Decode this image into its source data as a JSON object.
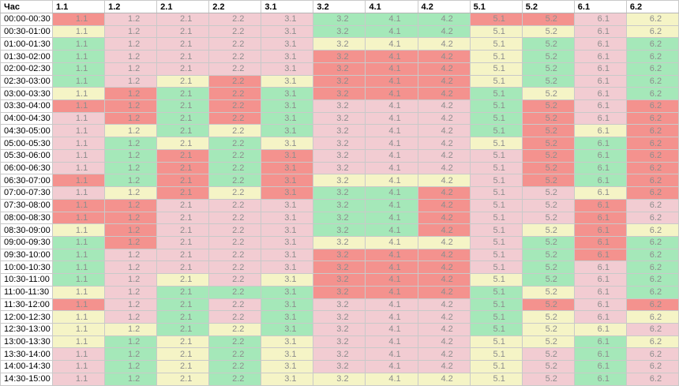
{
  "table": {
    "time_header": "Час"
  },
  "colors": {
    "red": "#f4928e",
    "pink": "#f2ccd2",
    "yellow": "#f5f4c6",
    "green": "#a5e8b9",
    "cell_text": "#8d8d8d",
    "header_text": "#000000",
    "border": "#c9c9c9",
    "row_background": "#ffffff"
  },
  "chart_data": {
    "type": "heatmap",
    "title": "",
    "xlabel": "",
    "ylabel": "Час",
    "legend": "none",
    "grid": true,
    "x_categories": [
      "1.1",
      "1.2",
      "2.1",
      "2.2",
      "3.1",
      "3.2",
      "4.1",
      "4.2",
      "5.1",
      "5.2",
      "6.1",
      "6.2"
    ],
    "y_categories": [
      "00:00-00:30",
      "00:30-01:00",
      "01:00-01:30",
      "01:30-02:00",
      "02:00-02:30",
      "02:30-03:00",
      "03:00-03:30",
      "03:30-04:00",
      "04:00-04:30",
      "04:30-05:00",
      "05:00-05:30",
      "05:30-06:00",
      "06:00-06:30",
      "06:30-07:00",
      "07:00-07:30",
      "07:30-08:00",
      "08:00-08:30",
      "08:30-09:00",
      "09:00-09:30",
      "09:30-10:00",
      "10:00-10:30",
      "10:30-11:00",
      "11:00-11:30",
      "11:30-12:00",
      "12:00-12:30",
      "12:30-13:00",
      "13:00-13:30",
      "13:30-14:00",
      "14:00-14:30",
      "14:30-15:00"
    ],
    "values": [
      [
        "red",
        "pink",
        "pink",
        "pink",
        "pink",
        "green",
        "green",
        "green",
        "red",
        "red",
        "pink",
        "yellow"
      ],
      [
        "yellow",
        "pink",
        "pink",
        "pink",
        "pink",
        "green",
        "green",
        "green",
        "yellow",
        "yellow",
        "pink",
        "yellow"
      ],
      [
        "green",
        "pink",
        "pink",
        "pink",
        "pink",
        "yellow",
        "yellow",
        "yellow",
        "yellow",
        "green",
        "pink",
        "green"
      ],
      [
        "green",
        "pink",
        "pink",
        "pink",
        "pink",
        "red",
        "red",
        "red",
        "yellow",
        "green",
        "pink",
        "green"
      ],
      [
        "green",
        "pink",
        "pink",
        "pink",
        "pink",
        "red",
        "red",
        "red",
        "yellow",
        "green",
        "pink",
        "green"
      ],
      [
        "green",
        "pink",
        "yellow",
        "red",
        "yellow",
        "red",
        "red",
        "red",
        "yellow",
        "green",
        "pink",
        "green"
      ],
      [
        "yellow",
        "red",
        "green",
        "red",
        "green",
        "red",
        "red",
        "red",
        "green",
        "yellow",
        "pink",
        "green"
      ],
      [
        "red",
        "red",
        "green",
        "red",
        "green",
        "pink",
        "pink",
        "pink",
        "green",
        "red",
        "pink",
        "red"
      ],
      [
        "pink",
        "red",
        "green",
        "red",
        "green",
        "pink",
        "pink",
        "pink",
        "green",
        "red",
        "pink",
        "red"
      ],
      [
        "pink",
        "yellow",
        "green",
        "yellow",
        "green",
        "pink",
        "pink",
        "pink",
        "green",
        "red",
        "yellow",
        "red"
      ],
      [
        "pink",
        "green",
        "yellow",
        "green",
        "yellow",
        "pink",
        "pink",
        "pink",
        "yellow",
        "red",
        "green",
        "red"
      ],
      [
        "pink",
        "green",
        "red",
        "green",
        "red",
        "pink",
        "pink",
        "pink",
        "pink",
        "red",
        "green",
        "red"
      ],
      [
        "pink",
        "green",
        "red",
        "green",
        "red",
        "pink",
        "pink",
        "pink",
        "pink",
        "red",
        "green",
        "red"
      ],
      [
        "red",
        "green",
        "red",
        "green",
        "red",
        "yellow",
        "yellow",
        "yellow",
        "pink",
        "red",
        "green",
        "red"
      ],
      [
        "pink",
        "yellow",
        "red",
        "yellow",
        "red",
        "green",
        "green",
        "red",
        "pink",
        "pink",
        "yellow",
        "red"
      ],
      [
        "red",
        "red",
        "pink",
        "pink",
        "pink",
        "green",
        "green",
        "red",
        "pink",
        "pink",
        "red",
        "pink"
      ],
      [
        "red",
        "red",
        "pink",
        "pink",
        "pink",
        "green",
        "green",
        "red",
        "pink",
        "pink",
        "red",
        "pink"
      ],
      [
        "yellow",
        "red",
        "pink",
        "pink",
        "pink",
        "green",
        "green",
        "red",
        "pink",
        "yellow",
        "red",
        "yellow"
      ],
      [
        "green",
        "red",
        "pink",
        "pink",
        "pink",
        "yellow",
        "yellow",
        "yellow",
        "pink",
        "green",
        "red",
        "green"
      ],
      [
        "green",
        "pink",
        "pink",
        "pink",
        "pink",
        "red",
        "red",
        "red",
        "pink",
        "green",
        "red",
        "green"
      ],
      [
        "green",
        "pink",
        "pink",
        "pink",
        "pink",
        "red",
        "red",
        "red",
        "pink",
        "green",
        "pink",
        "green"
      ],
      [
        "green",
        "pink",
        "yellow",
        "pink",
        "yellow",
        "red",
        "red",
        "red",
        "yellow",
        "green",
        "pink",
        "green"
      ],
      [
        "yellow",
        "pink",
        "green",
        "green",
        "green",
        "red",
        "red",
        "red",
        "green",
        "yellow",
        "pink",
        "green"
      ],
      [
        "red",
        "pink",
        "green",
        "pink",
        "green",
        "pink",
        "pink",
        "pink",
        "green",
        "red",
        "pink",
        "red"
      ],
      [
        "yellow",
        "pink",
        "green",
        "pink",
        "green",
        "pink",
        "pink",
        "pink",
        "green",
        "yellow",
        "pink",
        "yellow"
      ],
      [
        "yellow",
        "yellow",
        "green",
        "yellow",
        "green",
        "pink",
        "pink",
        "pink",
        "green",
        "yellow",
        "yellow",
        "pink"
      ],
      [
        "yellow",
        "green",
        "yellow",
        "green",
        "yellow",
        "pink",
        "pink",
        "pink",
        "yellow",
        "yellow",
        "green",
        "yellow"
      ],
      [
        "pink",
        "green",
        "yellow",
        "green",
        "yellow",
        "pink",
        "pink",
        "pink",
        "yellow",
        "pink",
        "green",
        "pink"
      ],
      [
        "pink",
        "green",
        "yellow",
        "green",
        "yellow",
        "pink",
        "pink",
        "pink",
        "yellow",
        "pink",
        "green",
        "pink"
      ],
      [
        "pink",
        "green",
        "yellow",
        "green",
        "yellow",
        "yellow",
        "yellow",
        "yellow",
        "yellow",
        "pink",
        "green",
        "pink"
      ]
    ]
  }
}
